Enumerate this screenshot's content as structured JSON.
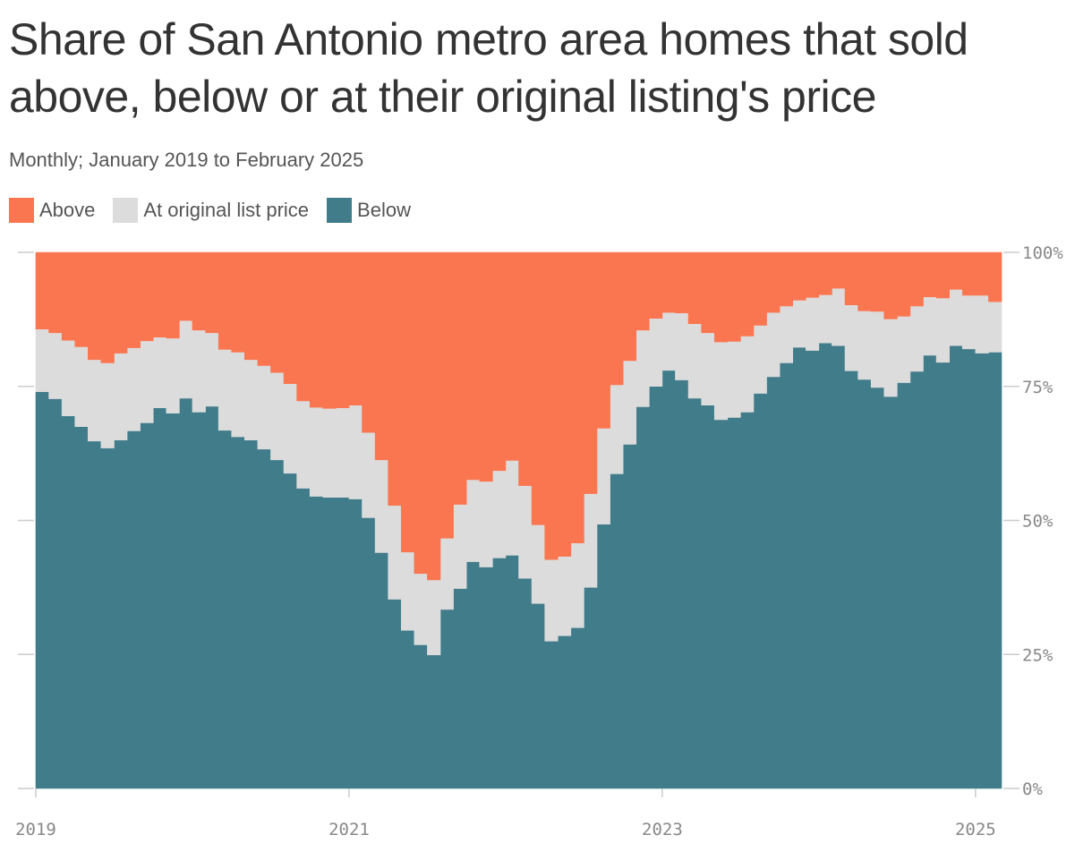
{
  "header": {
    "title": "Share of San Antonio metro area homes that sold above, below or at their original listing's price",
    "subtitle": "Monthly; January 2019 to February 2025"
  },
  "colors": {
    "above": "#fa7650",
    "at": "#dcdcdc",
    "below": "#417c8a",
    "axis": "#cccccc",
    "tick_text": "#888888"
  },
  "chart_data": {
    "type": "area",
    "stacking": "percent",
    "step": true,
    "title": "Share of San Antonio metro area homes that sold above, below or at their original listing's price",
    "subtitle": "Monthly; January 2019 to February 2025",
    "legend": [
      {
        "name": "Above",
        "color": "#fa7650"
      },
      {
        "name": "At original list price",
        "color": "#dcdcdc"
      },
      {
        "name": "Below",
        "color": "#417c8a"
      }
    ],
    "legend_position": "top-left",
    "y_axis": {
      "range": [
        0,
        100
      ],
      "ticks": [
        0,
        25,
        50,
        75,
        100
      ],
      "tick_labels": [
        "0%",
        "25%",
        "50%",
        "75%",
        "100%"
      ],
      "position": "right"
    },
    "x_axis": {
      "start": "2019-01",
      "end": "2025-02",
      "ticks": [
        "2019",
        "2021",
        "2023",
        "2025"
      ]
    },
    "grid": false,
    "months": [
      "2019-01",
      "2019-02",
      "2019-03",
      "2019-04",
      "2019-05",
      "2019-06",
      "2019-07",
      "2019-08",
      "2019-09",
      "2019-10",
      "2019-11",
      "2019-12",
      "2020-01",
      "2020-02",
      "2020-03",
      "2020-04",
      "2020-05",
      "2020-06",
      "2020-07",
      "2020-08",
      "2020-09",
      "2020-10",
      "2020-11",
      "2020-12",
      "2021-01",
      "2021-02",
      "2021-03",
      "2021-04",
      "2021-05",
      "2021-06",
      "2021-07",
      "2021-08",
      "2021-09",
      "2021-10",
      "2021-11",
      "2021-12",
      "2022-01",
      "2022-02",
      "2022-03",
      "2022-04",
      "2022-05",
      "2022-06",
      "2022-07",
      "2022-08",
      "2022-09",
      "2022-10",
      "2022-11",
      "2022-12",
      "2023-01",
      "2023-02",
      "2023-03",
      "2023-04",
      "2023-05",
      "2023-06",
      "2023-07",
      "2023-08",
      "2023-09",
      "2023-10",
      "2023-11",
      "2023-12",
      "2024-01",
      "2024-02",
      "2024-03",
      "2024-04",
      "2024-05",
      "2024-06",
      "2024-07",
      "2024-08",
      "2024-09",
      "2024-10",
      "2024-11",
      "2024-12",
      "2025-01",
      "2025-02"
    ],
    "series": [
      {
        "name": "Below",
        "values": [
          74.0,
          72.7,
          69.5,
          67.5,
          64.8,
          63.5,
          65.0,
          66.7,
          68.2,
          71.0,
          70.0,
          72.8,
          70.2,
          71.3,
          66.8,
          65.6,
          65.0,
          63.3,
          61.3,
          58.8,
          56.0,
          54.5,
          54.3,
          54.3,
          54.0,
          50.5,
          44.0,
          35.3,
          29.5,
          26.8,
          24.9,
          33.4,
          37.3,
          42.3,
          41.3,
          43.0,
          43.5,
          39.2,
          34.5,
          27.5,
          28.5,
          30.0,
          37.5,
          49.3,
          58.7,
          64.2,
          71.2,
          75.0,
          78.0,
          76.2,
          72.8,
          71.5,
          68.8,
          69.2,
          70.2,
          73.7,
          76.8,
          79.4,
          82.3,
          81.7,
          83.1,
          82.6,
          77.9,
          76.3,
          74.8,
          73.1,
          75.7,
          77.8,
          80.8,
          79.5,
          82.6,
          82.0,
          81.2,
          81.4
        ]
      },
      {
        "name": "At original list price",
        "values": [
          11.7,
          12.3,
          14.1,
          14.9,
          15.2,
          15.9,
          16.2,
          15.5,
          15.3,
          13.2,
          14.0,
          14.5,
          15.3,
          13.7,
          15.1,
          15.8,
          15.0,
          15.6,
          16.3,
          16.7,
          16.3,
          16.6,
          16.6,
          16.7,
          17.5,
          15.9,
          17.3,
          17.5,
          14.6,
          13.3,
          14.0,
          13.3,
          15.7,
          15.3,
          16.0,
          16.3,
          17.7,
          17.3,
          14.7,
          15.2,
          14.8,
          15.8,
          17.5,
          17.9,
          16.6,
          15.6,
          14.3,
          12.7,
          10.8,
          12.5,
          13.9,
          13.5,
          14.5,
          14.2,
          14.2,
          12.7,
          12.0,
          10.6,
          8.8,
          9.9,
          9.0,
          10.7,
          12.3,
          12.8,
          14.2,
          14.5,
          12.4,
          12.2,
          10.9,
          12.0,
          10.5,
          10.0,
          10.8,
          9.4
        ]
      },
      {
        "name": "Above",
        "values": [
          14.3,
          15.0,
          16.4,
          17.6,
          20.0,
          20.6,
          18.8,
          17.8,
          16.5,
          15.8,
          16.0,
          12.7,
          14.5,
          15.0,
          18.1,
          18.6,
          20.0,
          21.1,
          22.4,
          24.5,
          27.7,
          28.9,
          29.1,
          29.0,
          28.5,
          33.6,
          38.7,
          47.2,
          55.9,
          59.9,
          61.1,
          53.3,
          47.0,
          42.4,
          42.7,
          40.7,
          38.8,
          43.5,
          50.8,
          57.3,
          56.7,
          54.2,
          45.0,
          32.8,
          24.7,
          20.2,
          14.5,
          12.3,
          11.2,
          11.3,
          13.3,
          15.0,
          16.7,
          16.6,
          15.6,
          13.6,
          11.2,
          10.0,
          8.9,
          8.4,
          7.9,
          6.7,
          9.8,
          10.9,
          11.0,
          12.4,
          11.9,
          10.0,
          8.3,
          8.5,
          6.9,
          8.0,
          8.0,
          9.2
        ]
      }
    ]
  }
}
